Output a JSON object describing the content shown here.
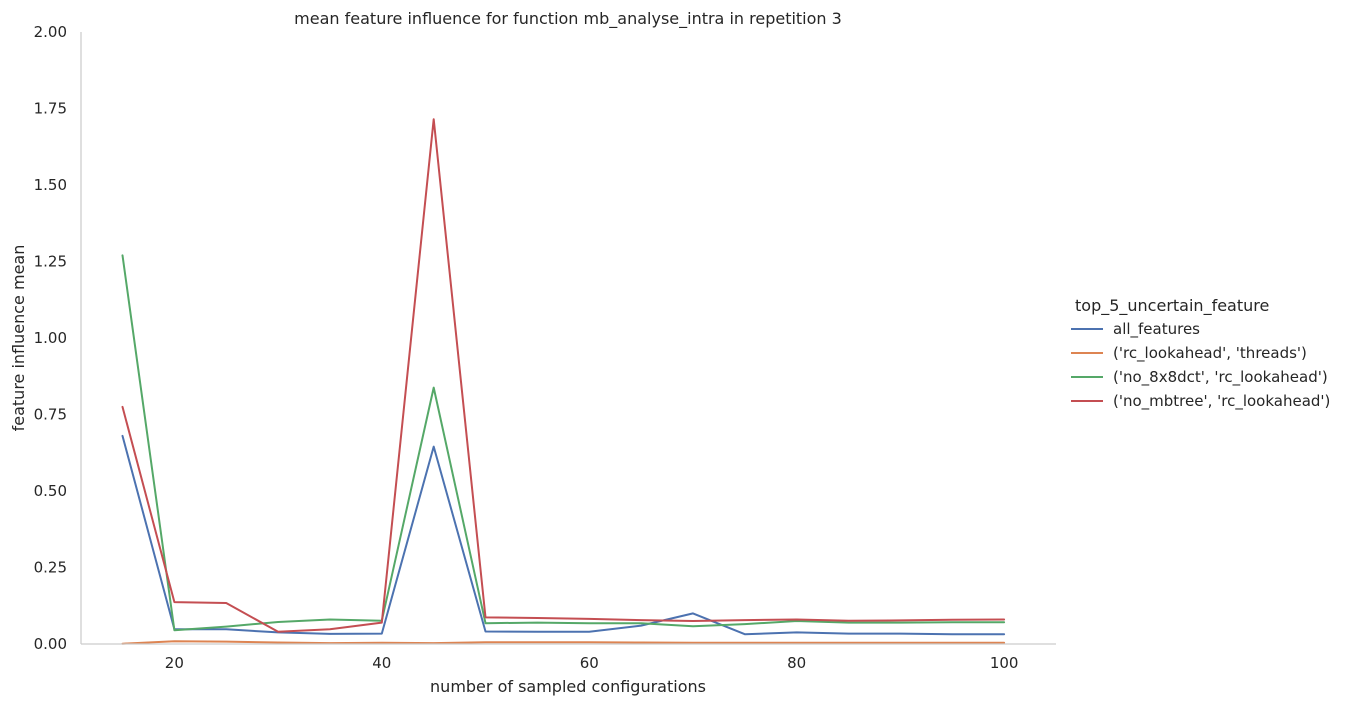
{
  "chart_data": {
    "type": "line",
    "title": "mean feature influence for function mb_analyse_intra in repetition 3",
    "xlabel": "number of sampled configurations",
    "ylabel": "feature influence mean",
    "xlim": [
      11,
      105
    ],
    "ylim": [
      0,
      2.0
    ],
    "xticks": [
      20,
      40,
      60,
      80,
      100
    ],
    "yticks": [
      "0.00",
      "0.25",
      "0.50",
      "0.75",
      "1.00",
      "1.25",
      "1.50",
      "1.75",
      "2.00"
    ],
    "grid": false,
    "legend": {
      "title": "top_5_uncertain_feature",
      "placement": "right"
    },
    "x": [
      15,
      20,
      25,
      30,
      35,
      40,
      45,
      50,
      55,
      60,
      65,
      70,
      75,
      80,
      85,
      90,
      95,
      100
    ],
    "series": [
      {
        "name": "all_features",
        "color": "#4c72b0",
        "values": [
          0.68,
          0.048,
          0.048,
          0.038,
          0.033,
          0.034,
          0.645,
          0.041,
          0.04,
          0.04,
          0.06,
          0.1,
          0.032,
          0.038,
          0.034,
          0.034,
          0.032,
          0.032
        ]
      },
      {
        "name": "('rc_lookahead', 'threads')",
        "color": "#dd8452",
        "values": [
          0.001,
          0.009,
          0.008,
          0.005,
          0.003,
          0.004,
          0.003,
          0.006,
          0.006,
          0.006,
          0.005,
          0.004,
          0.004,
          0.004,
          0.004,
          0.004,
          0.004,
          0.004
        ]
      },
      {
        "name": "('no_8x8dct', 'rc_lookahead')",
        "color": "#55a868",
        "values": [
          1.27,
          0.045,
          0.057,
          0.072,
          0.08,
          0.076,
          0.838,
          0.068,
          0.07,
          0.068,
          0.068,
          0.058,
          0.065,
          0.075,
          0.07,
          0.07,
          0.071,
          0.071
        ]
      },
      {
        "name": "('no_mbtree', 'rc_lookahead')",
        "color": "#c44e52",
        "values": [
          0.775,
          0.137,
          0.134,
          0.04,
          0.048,
          0.07,
          1.715,
          0.087,
          0.085,
          0.082,
          0.078,
          0.075,
          0.078,
          0.08,
          0.076,
          0.077,
          0.079,
          0.08
        ]
      }
    ]
  }
}
